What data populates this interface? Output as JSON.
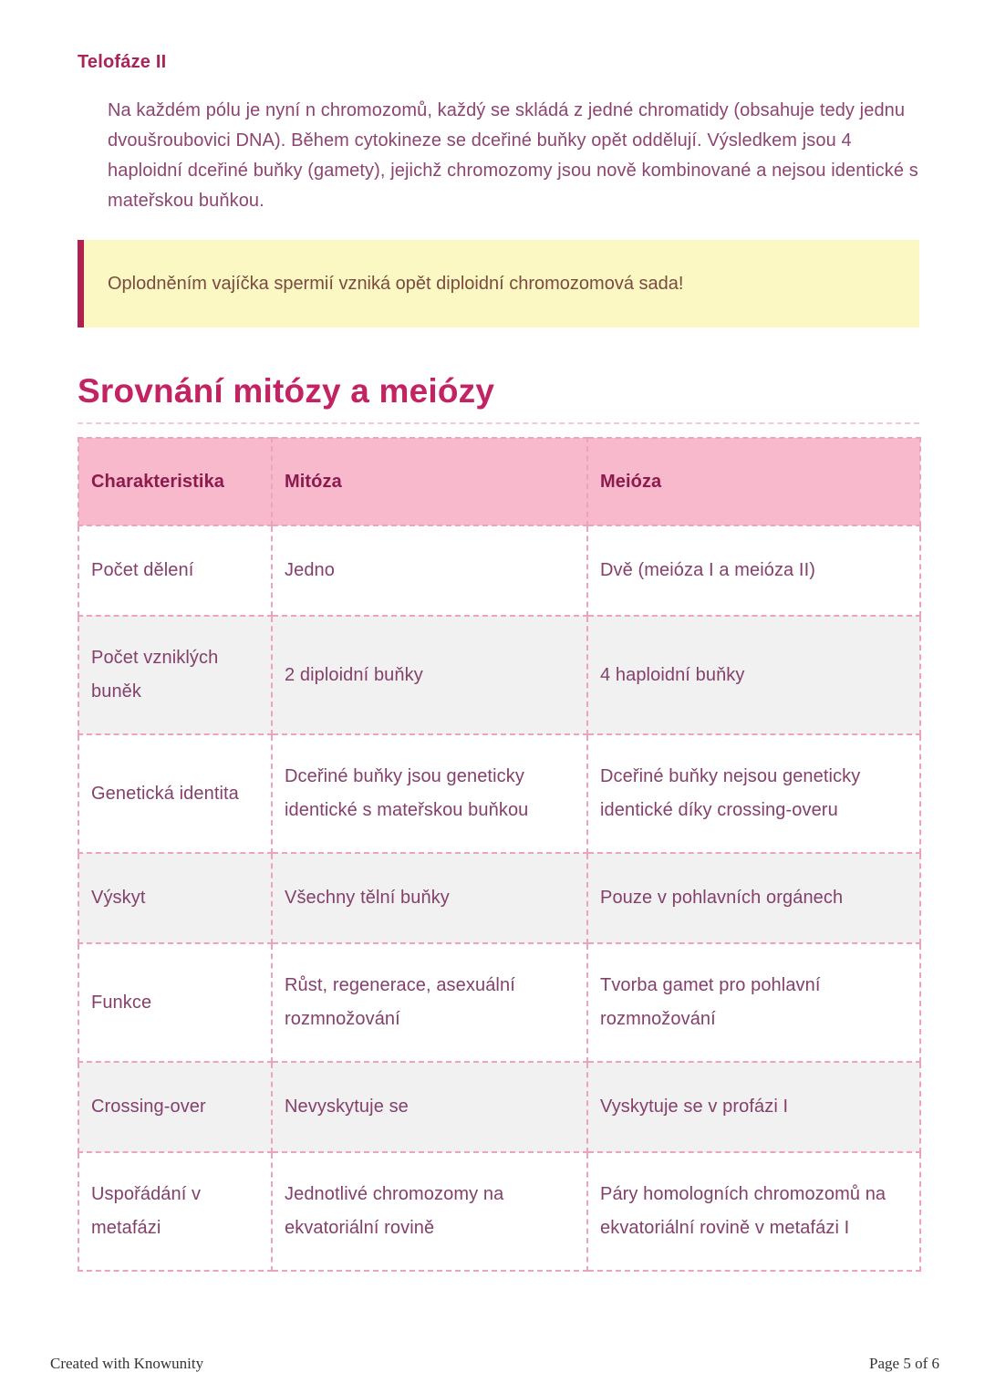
{
  "section": {
    "heading": "Telofáze II",
    "paragraph": "Na každém pólu je nyní n chromozomů, každý se skládá z jedné chromatidy (obsahuje tedy jednu dvoušroubovici DNA). Během cytokineze se dceřiné buňky opět oddělují. Výsledkem jsou 4 haploidní dceřiné buňky (gamety), jejichž chromozomy jsou nově kombinované a nejsou identické s mateřskou buňkou."
  },
  "callout": {
    "text": "Oplodněním vajíčka spermií vzniká opět diploidní chromozomová sada!"
  },
  "comparison": {
    "title": "Srovnání mitózy a meiózy",
    "table": {
      "headers": [
        "Charakteristika",
        "Mitóza",
        "Meióza"
      ],
      "rows": [
        [
          "Počet dělení",
          "Jedno",
          "Dvě (meióza I a meióza II)"
        ],
        [
          "Počet vzniklých buněk",
          "2 diploidní buňky",
          "4 haploidní buňky"
        ],
        [
          "Genetická identita",
          "Dceřiné buňky jsou geneticky identické s mateřskou buňkou",
          "Dceřiné buňky nejsou geneticky identické díky crossing-overu"
        ],
        [
          "Výskyt",
          "Všechny tělní buňky",
          "Pouze v pohlavních orgánech"
        ],
        [
          "Funkce",
          "Růst, regenerace, asexuální rozmnožování",
          "Tvorba gamet pro pohlavní rozmnožování"
        ],
        [
          "Crossing-over",
          "Nevyskytuje se",
          "Vyskytuje se v profázi I"
        ],
        [
          "Uspořádání v metafázi",
          "Jednotlivé chromozomy na ekvatoriální rovině",
          "Páry homologních chromozomů na ekvatoriální rovině v metafázi I"
        ]
      ]
    }
  },
  "footer": {
    "left": "Created with Knowunity",
    "right": "Page 5 of 6"
  },
  "colors": {
    "accent": "#c32362",
    "section_heading": "#a82459",
    "body_text": "#8d4470",
    "callout_bg": "#fbf8c3",
    "callout_border": "#b1204f",
    "callout_text": "#7b4a41",
    "table_header_bg": "#f8b9cd",
    "table_header_text": "#8c1a4d",
    "table_cell_text": "#84406b",
    "row_alt_bg": "#f1f1f2",
    "dashed_border": "#eda3b8"
  }
}
